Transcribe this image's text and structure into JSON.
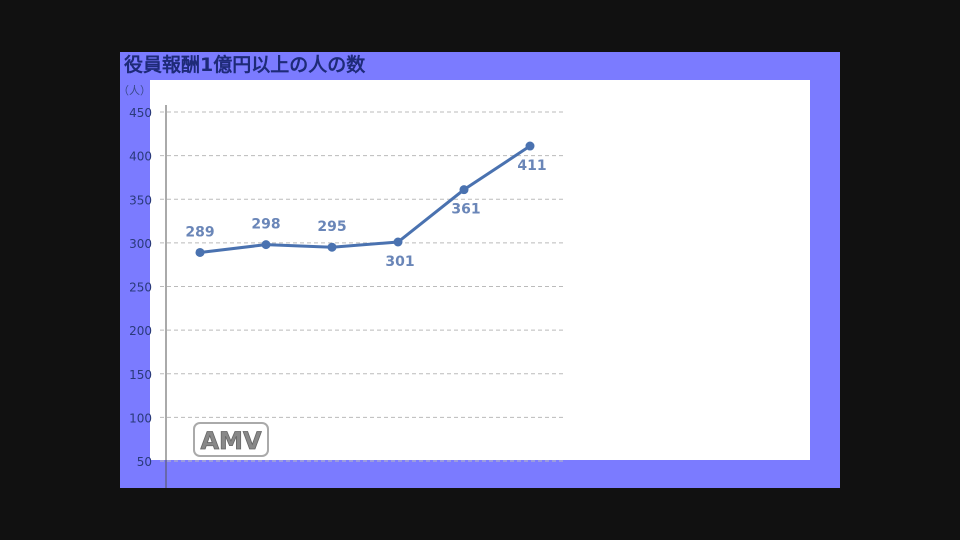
{
  "chart_data": {
    "type": "line",
    "title": "役員報酬1億円以上の人の数",
    "ylabel": "（人）",
    "xlabel": "",
    "categories": [
      "",
      "",
      "",
      "",
      "",
      ""
    ],
    "values": [
      289,
      298,
      295,
      301,
      361,
      411
    ],
    "data_labels": [
      "289",
      "298",
      "295",
      "301",
      "361",
      "411"
    ],
    "label_positions": [
      "above",
      "above",
      "above",
      "below",
      "below",
      "below"
    ],
    "ylim": [
      50,
      450
    ],
    "yticks": [
      "50",
      "100",
      "150",
      "200",
      "250",
      "300",
      "350",
      "400",
      "450"
    ],
    "grid": true,
    "colors": {
      "line": "#4a72b0",
      "label": "#6a86b8",
      "frame": "#7b7bff",
      "panel": "#ffffff",
      "letterbox": "#111111"
    }
  },
  "watermark": "AMV"
}
